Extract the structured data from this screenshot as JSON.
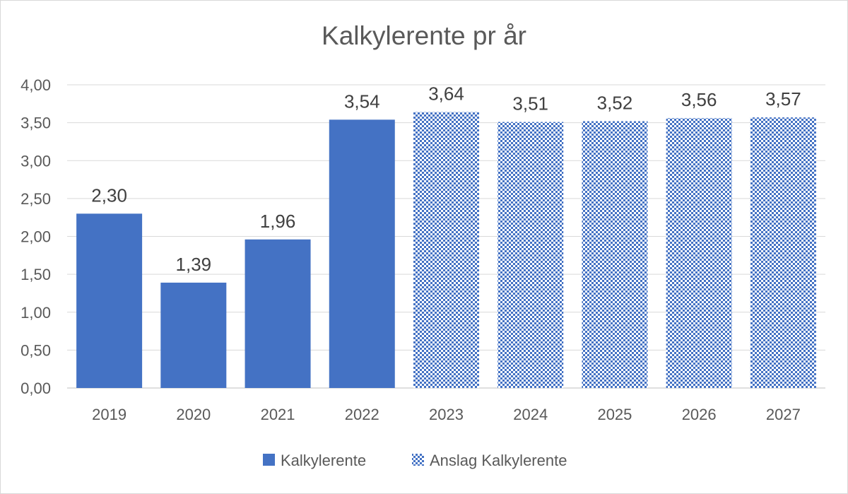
{
  "chart_data": {
    "type": "bar",
    "title": "Kalkylerente pr år",
    "categories": [
      "2019",
      "2020",
      "2021",
      "2022",
      "2023",
      "2024",
      "2025",
      "2026",
      "2027"
    ],
    "values": [
      2.3,
      1.39,
      1.96,
      3.54,
      3.64,
      3.51,
      3.52,
      3.56,
      3.57
    ],
    "data_labels": [
      "2,30",
      "1,39",
      "1,96",
      "3,54",
      "3,64",
      "3,51",
      "3,52",
      "3,56",
      "3,57"
    ],
    "series": [
      {
        "name": "Kalkylerente",
        "categories": [
          "2019",
          "2020",
          "2021",
          "2022"
        ],
        "style": "solid",
        "color": "#4472c4"
      },
      {
        "name": "Anslag Kalkylerente",
        "categories": [
          "2023",
          "2024",
          "2025",
          "2026",
          "2027"
        ],
        "style": "pattern",
        "color": "#4472c4"
      }
    ],
    "y_ticks": [
      0,
      0.5,
      1,
      1.5,
      2,
      2.5,
      3,
      3.5,
      4
    ],
    "y_tick_labels": [
      "0,00",
      "0,50",
      "1,00",
      "1,50",
      "2,00",
      "2,50",
      "3,00",
      "3,50",
      "4,00"
    ],
    "ylim": [
      0,
      4
    ],
    "grid": true,
    "legend_position": "bottom"
  }
}
